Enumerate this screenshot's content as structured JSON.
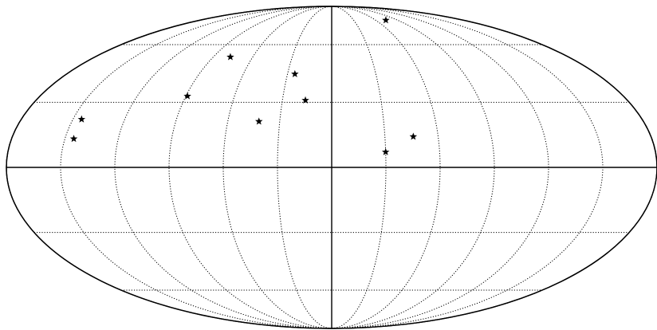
{
  "chart_data": {
    "type": "scatter",
    "projection": "mollweide",
    "grid": true,
    "graticule": {
      "meridians_deg": [
        -150,
        -120,
        -90,
        -60,
        -30,
        30,
        60,
        90,
        120,
        150
      ],
      "parallels_deg": [
        -60,
        -30,
        30,
        60
      ],
      "central_meridian_deg": 0,
      "equator_deg": 0,
      "style": "dotted"
    },
    "marker": "star",
    "marker_color": "#000000",
    "x_unit": "longitude_deg",
    "y_unit": "latitude_deg",
    "points": [
      {
        "lon": -145,
        "lat": 22
      },
      {
        "lon": -145,
        "lat": 13
      },
      {
        "lon": -89,
        "lat": 33
      },
      {
        "lon": -77,
        "lat": 53
      },
      {
        "lon": -42,
        "lat": 21
      },
      {
        "lon": -25,
        "lat": 44
      },
      {
        "lon": -16,
        "lat": 31
      },
      {
        "lon": 30,
        "lat": 7
      },
      {
        "lon": 46,
        "lat": 14
      },
      {
        "lon": 74,
        "lat": 76
      }
    ],
    "title": "",
    "xlabel": "",
    "ylabel": ""
  }
}
